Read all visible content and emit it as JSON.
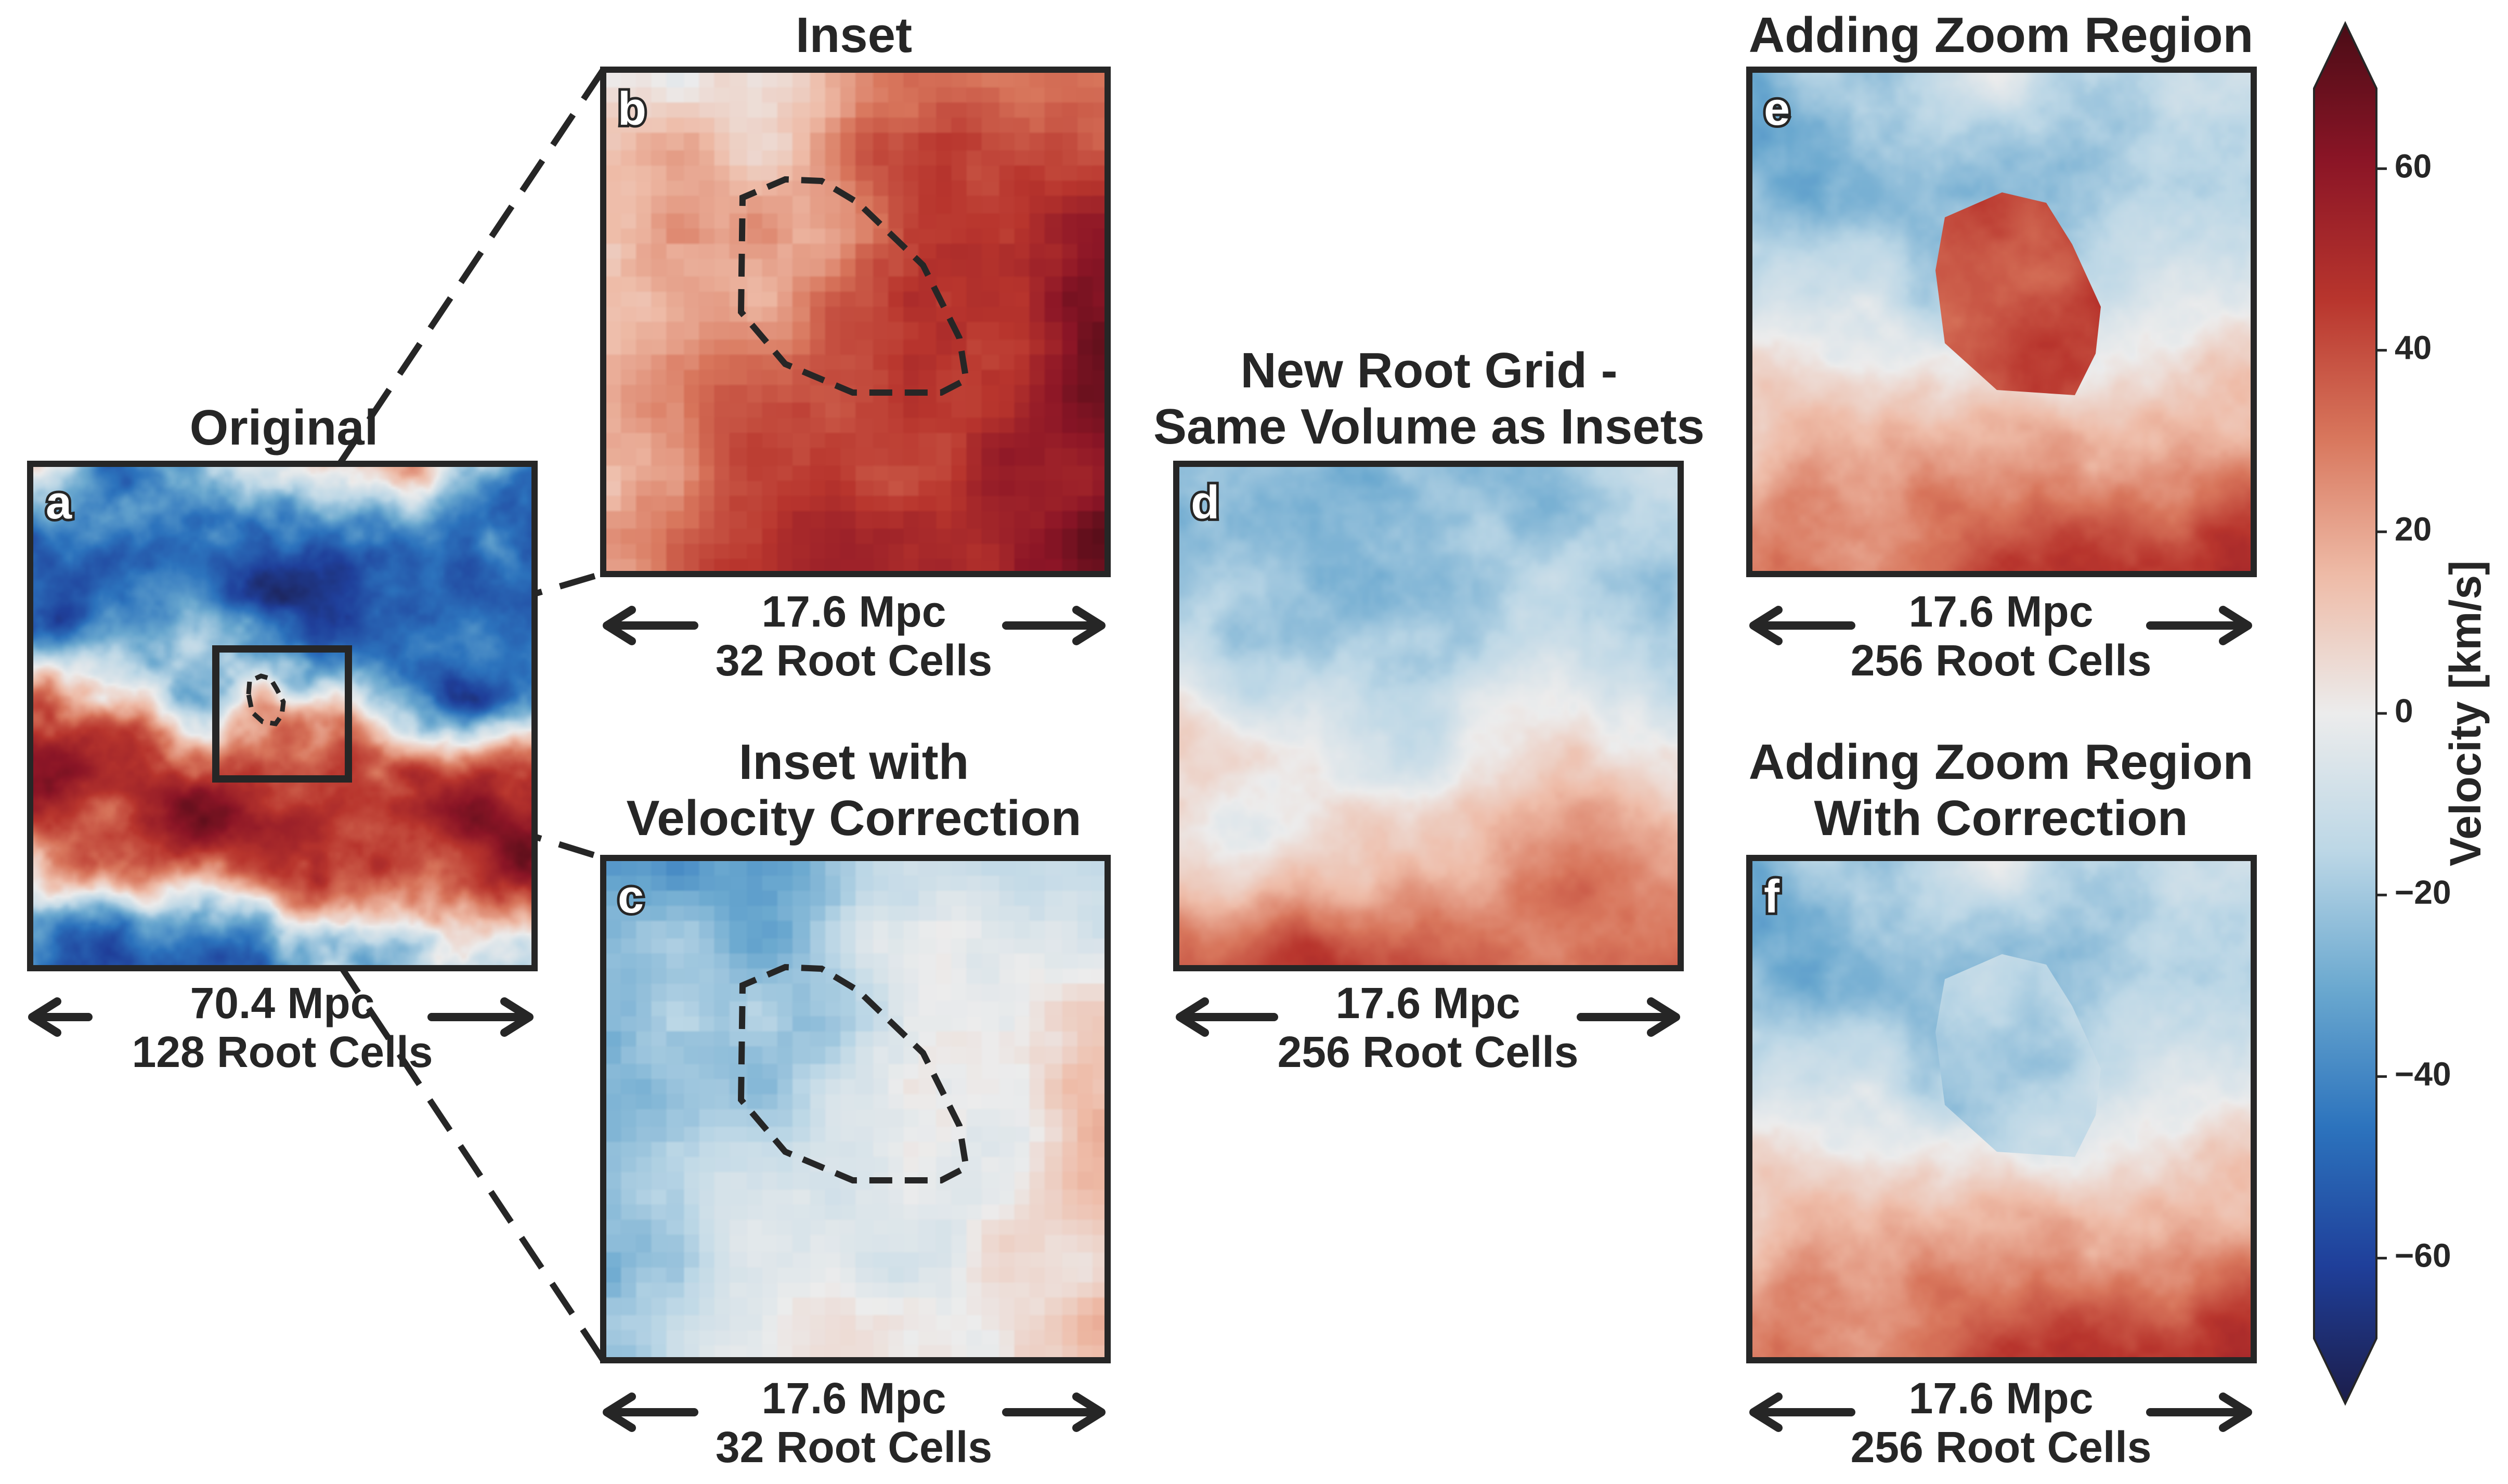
{
  "colors": {
    "frame": "#262626",
    "cmap": [
      "#1c1d4a",
      "#1f3f9a",
      "#2c73bd",
      "#6aa8cf",
      "#bcd7e6",
      "#ececec",
      "#eebba7",
      "#d8765c",
      "#b8352d",
      "#8b1526",
      "#4a0c16"
    ]
  },
  "panels": {
    "a": {
      "letter": "a",
      "title": "Original",
      "scale_size": "70.4 Mpc",
      "scale_cells": "128 Root Cells",
      "mean_velocity": 0,
      "contrast": 1.2
    },
    "b": {
      "letter": "b",
      "title": "Inset",
      "scale_size": "17.6 Mpc",
      "scale_cells": "32 Root Cells",
      "mean_velocity": 36
    },
    "c": {
      "letter": "c",
      "title_line1": "Inset with",
      "title_line2": "Velocity Correction",
      "scale_size": "17.6 Mpc",
      "scale_cells": "32 Root Cells",
      "mean_velocity": -8
    },
    "d": {
      "letter": "d",
      "title_line1": "New Root Grid -",
      "title_line2": "Same Volume as Insets",
      "scale_size": "17.6 Mpc",
      "scale_cells": "256 Root Cells",
      "mean_velocity": 0
    },
    "e": {
      "letter": "e",
      "title": "Adding Zoom Region",
      "scale_size": "17.6 Mpc",
      "scale_cells": "256 Root Cells",
      "mean_velocity": 0,
      "zoom_mean_velocity": 38
    },
    "f": {
      "letter": "f",
      "title_line1": "Adding Zoom Region",
      "title_line2": "With Correction",
      "scale_size": "17.6 Mpc",
      "scale_cells": "256 Root Cells",
      "mean_velocity": 0,
      "zoom_mean_velocity": -12
    }
  },
  "colorbar": {
    "label": "Velocity [km/s]",
    "min": -76,
    "max": 76,
    "ticks": [
      {
        "value": 60,
        "label": "60"
      },
      {
        "value": 40,
        "label": "40"
      },
      {
        "value": 20,
        "label": "20"
      },
      {
        "value": 0,
        "label": "0"
      },
      {
        "value": -20,
        "label": "−20"
      },
      {
        "value": -40,
        "label": "−40"
      },
      {
        "value": -60,
        "label": "−60"
      }
    ]
  }
}
